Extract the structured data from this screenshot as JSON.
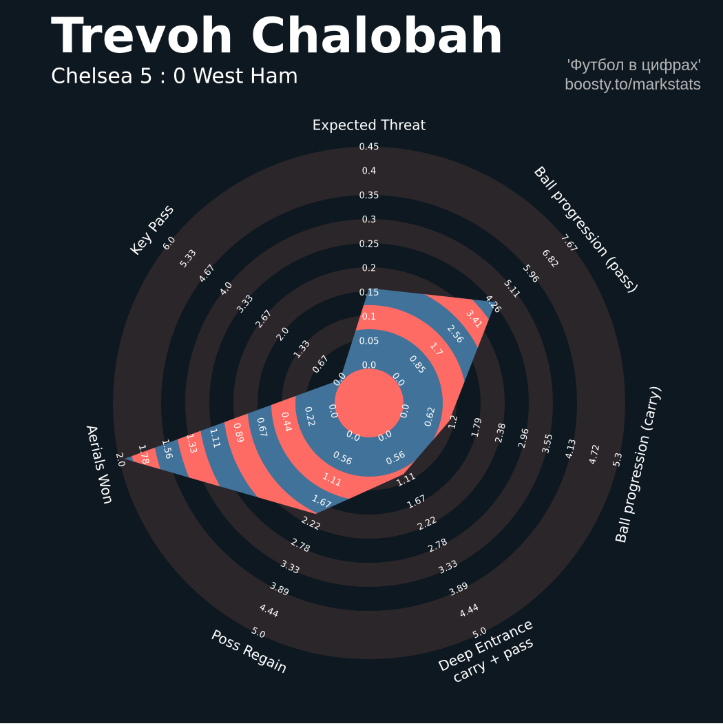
{
  "chart_data": {
    "type": "radar",
    "title": "Trevoh Chalobah",
    "subtitle": "Chelsea 5 : 0 West Ham",
    "credits": [
      "'Футбол в цифрах'",
      "boosty.to/markstats"
    ],
    "categories": [
      "Expected Threat",
      "Ball progression (pass)",
      "Ball progression (carry)",
      [
        "Deep Entrance",
        "carry + pass"
      ],
      "Poss Regain",
      "Aerials Won",
      "Key Pass"
    ],
    "values": [
      0.16,
      4.38,
      1.09,
      0.96,
      1.97,
      1.96,
      0
    ],
    "colors": {
      "background": "#0e1820",
      "rings": "#2b2629",
      "polygon": "#41729a",
      "stripes": "#fe6b64"
    },
    "axes": [
      {
        "lim": [
          0,
          0.45
        ],
        "ticks": [
          {
            "value": 0,
            "label": "0.0"
          },
          0.05,
          0.1,
          0.15,
          0.2,
          0.25,
          0.3,
          0.35,
          0.4,
          0.45
        ]
      },
      {
        "lim": [
          0,
          7.67
        ],
        "ticks": [
          {
            "value": 0,
            "label": "0.0"
          },
          0.85,
          1.7,
          2.56,
          3.41,
          4.26,
          5.11,
          5.96,
          6.82,
          7.67
        ]
      },
      {
        "lim": [
          0,
          5.3
        ],
        "ticks": [
          {
            "value": 0,
            "label": "0.0"
          },
          0.62,
          1.2,
          1.79,
          2.38,
          2.96,
          3.55,
          4.13,
          4.72,
          5.3
        ]
      },
      {
        "lim": [
          0,
          5
        ],
        "ticks": [
          {
            "value": 0,
            "label": "0.0"
          },
          0.56,
          1.11,
          1.67,
          2.22,
          2.78,
          3.33,
          3.89,
          4.44,
          {
            "value": 5,
            "label": "5.0"
          }
        ]
      },
      {
        "lim": [
          0,
          5
        ],
        "ticks": [
          {
            "value": 0,
            "label": "0.0"
          },
          0.56,
          1.11,
          1.67,
          2.22,
          2.78,
          3.33,
          3.89,
          4.44,
          {
            "value": 5,
            "label": "5.0"
          }
        ]
      },
      {
        "lim": [
          0,
          2
        ],
        "ticks": [
          {
            "value": 0,
            "label": "0.0"
          },
          0.22,
          0.44,
          0.67,
          0.89,
          1.11,
          1.33,
          1.56,
          1.78,
          {
            "value": 2,
            "label": "2.0"
          }
        ]
      },
      {
        "lim": [
          0,
          6
        ],
        "ticks": [
          {
            "value": 0,
            "label": "0.0"
          },
          0.67,
          1.33,
          {
            "value": 2,
            "label": "2.0"
          },
          2.67,
          3.33,
          {
            "value": 4,
            "label": "4.0"
          },
          4.67,
          5.33,
          {
            "value": 6,
            "label": "6.0"
          }
        ]
      }
    ]
  }
}
